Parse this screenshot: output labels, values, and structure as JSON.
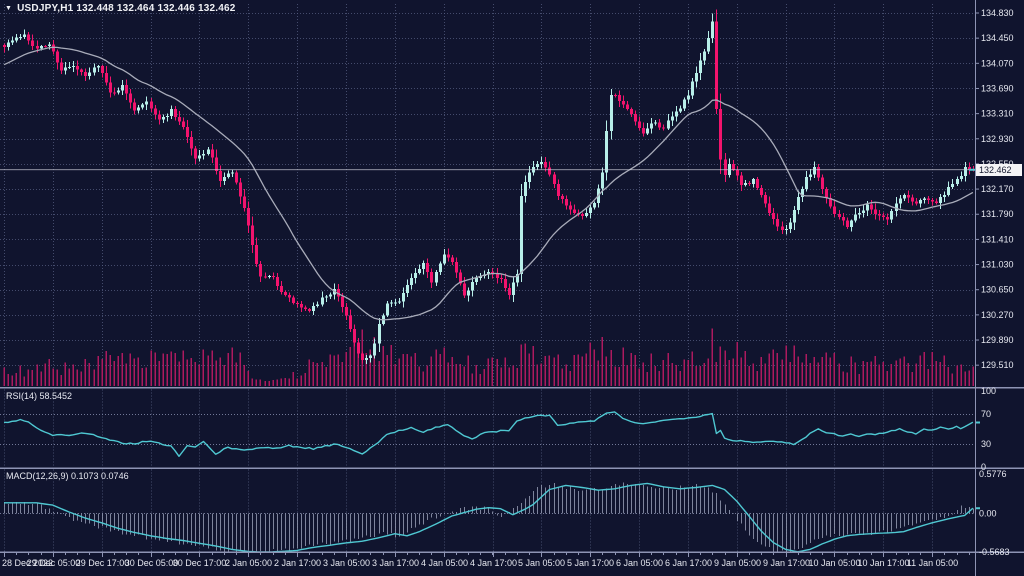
{
  "header": {
    "title_text": "USDJPY,H1 132.448 132.464 132.446 132.462",
    "dropdown_icon": "▼"
  },
  "panels": {
    "rsi_label": "RSI(14) 58.5452",
    "macd_label": "MACD(12,26,9) 0.1073 0.0746"
  },
  "price_axis": {
    "ticks": [
      "134.830",
      "134.450",
      "134.070",
      "133.690",
      "133.310",
      "132.930",
      "132.550",
      "132.170",
      "131.790",
      "131.410",
      "131.030",
      "130.650",
      "130.270",
      "129.890",
      "129.510"
    ],
    "current_label": "132.462"
  },
  "time_axis": {
    "labels": [
      "28 Dec 2022",
      "29 Dec 05:00",
      "29 Dec 17:00",
      "30 Dec 05:00",
      "30 Dec 17:00",
      "2 Jan 05:00",
      "2 Jan 17:00",
      "3 Jan 05:00",
      "3 Jan 17:00",
      "4 Jan 05:00",
      "4 Jan 17:00",
      "5 Jan 05:00",
      "5 Jan 17:00",
      "6 Jan 05:00",
      "6 Jan 17:00",
      "9 Jan 05:00",
      "9 Jan 17:00",
      "10 Jan 05:00",
      "10 Jan 17:00",
      "11 Jan 05:00"
    ]
  },
  "colors": {
    "background": "#10142e",
    "bull": "#b8efe9",
    "bear": "#f2146d",
    "volume": "#ad1a5f",
    "ma_line": "#a9acba",
    "indicator_line": "#4fc8d2",
    "histogram": "#9aa0b8",
    "grid": "#565d82",
    "level_line": "#7d84a4",
    "separator": "#8e94b4",
    "axis_text": "#e6e8f0",
    "price_line": "#cfd2dd",
    "price_box_bg": "#f4f4f6",
    "price_box_text": "#14182e"
  },
  "chart_data": {
    "type": "candlestick",
    "symbol": "USDJPY",
    "timeframe": "H1",
    "ohlc_quote": {
      "open": 132.448,
      "high": 132.464,
      "low": 132.446,
      "close": 132.462
    },
    "bars_total": 239,
    "visible_price_range": [
      129.45,
      134.92
    ],
    "current_price": 132.462,
    "close_path": [
      [
        0,
        134.35
      ],
      [
        3,
        134.44
      ],
      [
        5,
        134.52
      ],
      [
        8,
        134.28
      ],
      [
        11,
        134.36
      ],
      [
        14,
        133.98
      ],
      [
        17,
        134.02
      ],
      [
        20,
        133.86
      ],
      [
        23,
        134.06
      ],
      [
        26,
        133.62
      ],
      [
        29,
        133.72
      ],
      [
        32,
        133.38
      ],
      [
        35,
        133.52
      ],
      [
        38,
        133.2
      ],
      [
        41,
        133.36
      ],
      [
        44,
        133.12
      ],
      [
        47,
        132.62
      ],
      [
        50,
        132.78
      ],
      [
        53,
        132.3
      ],
      [
        56,
        132.42
      ],
      [
        59,
        131.88
      ],
      [
        61,
        131.3
      ],
      [
        63,
        130.82
      ],
      [
        66,
        130.82
      ],
      [
        69,
        130.55
      ],
      [
        72,
        130.42
      ],
      [
        75,
        130.3
      ],
      [
        78,
        130.52
      ],
      [
        81,
        130.64
      ],
      [
        84,
        130.28
      ],
      [
        86,
        129.85
      ],
      [
        88,
        129.58
      ],
      [
        90,
        129.62
      ],
      [
        92,
        130.1
      ],
      [
        94,
        130.42
      ],
      [
        97,
        130.5
      ],
      [
        100,
        130.82
      ],
      [
        103,
        131.02
      ],
      [
        105,
        130.78
      ],
      [
        108,
        131.22
      ],
      [
        110,
        131.05
      ],
      [
        113,
        130.58
      ],
      [
        116,
        130.85
      ],
      [
        119,
        130.95
      ],
      [
        122,
        130.78
      ],
      [
        124,
        130.6
      ],
      [
        126,
        130.92
      ],
      [
        127,
        132.1
      ],
      [
        129,
        132.42
      ],
      [
        132,
        132.58
      ],
      [
        134,
        132.38
      ],
      [
        136,
        132.05
      ],
      [
        139,
        131.85
      ],
      [
        142,
        131.78
      ],
      [
        145,
        131.95
      ],
      [
        147,
        132.45
      ],
      [
        149,
        133.62
      ],
      [
        151,
        133.5
      ],
      [
        154,
        133.28
      ],
      [
        157,
        132.98
      ],
      [
        159,
        133.18
      ],
      [
        162,
        133.1
      ],
      [
        165,
        133.32
      ],
      [
        168,
        133.6
      ],
      [
        170,
        133.92
      ],
      [
        172,
        134.25
      ],
      [
        174,
        134.7
      ],
      [
        175,
        133.35
      ],
      [
        176,
        132.62
      ],
      [
        177,
        132.38
      ],
      [
        178,
        132.58
      ],
      [
        181,
        132.22
      ],
      [
        184,
        132.3
      ],
      [
        187,
        131.95
      ],
      [
        189,
        131.72
      ],
      [
        191,
        131.52
      ],
      [
        193,
        131.68
      ],
      [
        195,
        132.05
      ],
      [
        197,
        132.35
      ],
      [
        199,
        132.5
      ],
      [
        202,
        132.05
      ],
      [
        204,
        131.82
      ],
      [
        207,
        131.62
      ],
      [
        209,
        131.78
      ],
      [
        212,
        131.92
      ],
      [
        214,
        131.82
      ],
      [
        217,
        131.72
      ],
      [
        219,
        131.95
      ],
      [
        221,
        132.08
      ],
      [
        224,
        131.95
      ],
      [
        226,
        132.05
      ],
      [
        229,
        131.96
      ],
      [
        231,
        132.1
      ],
      [
        234,
        132.3
      ],
      [
        236,
        132.48
      ],
      [
        238,
        132.462
      ]
    ],
    "volume_path": [
      [
        0,
        0.35
      ],
      [
        6,
        0.3
      ],
      [
        12,
        0.45
      ],
      [
        18,
        0.35
      ],
      [
        24,
        0.55
      ],
      [
        30,
        0.5
      ],
      [
        34,
        0.7
      ],
      [
        40,
        0.55
      ],
      [
        46,
        0.6
      ],
      [
        52,
        0.55
      ],
      [
        57,
        0.65
      ],
      [
        61,
        0.3
      ],
      [
        64,
        0.12
      ],
      [
        70,
        0.15
      ],
      [
        74,
        0.4
      ],
      [
        80,
        0.55
      ],
      [
        84,
        0.65
      ],
      [
        88,
        0.9
      ],
      [
        92,
        0.8
      ],
      [
        96,
        0.6
      ],
      [
        102,
        0.55
      ],
      [
        108,
        0.6
      ],
      [
        114,
        0.5
      ],
      [
        120,
        0.45
      ],
      [
        125,
        0.55
      ],
      [
        127,
        0.8
      ],
      [
        131,
        0.6
      ],
      [
        136,
        0.5
      ],
      [
        141,
        0.55
      ],
      [
        146,
        0.8
      ],
      [
        150,
        0.7
      ],
      [
        155,
        0.55
      ],
      [
        160,
        0.5
      ],
      [
        165,
        0.55
      ],
      [
        170,
        0.75
      ],
      [
        174,
        0.95
      ],
      [
        178,
        0.85
      ],
      [
        182,
        0.6
      ],
      [
        187,
        0.55
      ],
      [
        192,
        0.7
      ],
      [
        196,
        0.6
      ],
      [
        200,
        0.55
      ],
      [
        205,
        0.5
      ],
      [
        210,
        0.45
      ],
      [
        215,
        0.5
      ],
      [
        220,
        0.45
      ],
      [
        225,
        0.65
      ],
      [
        230,
        0.5
      ],
      [
        234,
        0.45
      ],
      [
        238,
        0.4
      ]
    ],
    "moving_average": {
      "style": "smoothed price average (gray)",
      "window": 21
    },
    "rsi": {
      "period": 14,
      "current": 58.5452,
      "range": [
        0,
        100
      ],
      "levels": [
        70,
        30
      ],
      "path": [
        [
          0,
          58
        ],
        [
          4,
          62
        ],
        [
          6,
          60
        ],
        [
          9,
          48
        ],
        [
          12,
          42
        ],
        [
          16,
          42
        ],
        [
          20,
          45
        ],
        [
          23,
          40
        ],
        [
          26,
          35
        ],
        [
          29,
          32
        ],
        [
          32,
          30
        ],
        [
          35,
          34
        ],
        [
          38,
          31
        ],
        [
          41,
          28
        ],
        [
          43,
          14
        ],
        [
          45,
          28
        ],
        [
          47,
          26
        ],
        [
          49,
          33
        ],
        [
          52,
          17
        ],
        [
          55,
          26
        ],
        [
          58,
          22
        ],
        [
          61,
          24
        ],
        [
          64,
          26
        ],
        [
          67,
          24
        ],
        [
          70,
          28
        ],
        [
          73,
          26
        ],
        [
          76,
          24
        ],
        [
          79,
          28
        ],
        [
          82,
          30
        ],
        [
          85,
          24
        ],
        [
          88,
          18
        ],
        [
          91,
          28
        ],
        [
          94,
          42
        ],
        [
          97,
          48
        ],
        [
          100,
          52
        ],
        [
          103,
          46
        ],
        [
          106,
          52
        ],
        [
          109,
          56
        ],
        [
          112,
          44
        ],
        [
          115,
          37
        ],
        [
          118,
          45
        ],
        [
          121,
          47
        ],
        [
          124,
          48
        ],
        [
          126,
          60
        ],
        [
          128,
          65
        ],
        [
          131,
          67
        ],
        [
          134,
          68
        ],
        [
          136,
          55
        ],
        [
          139,
          57
        ],
        [
          142,
          59
        ],
        [
          145,
          61
        ],
        [
          148,
          70
        ],
        [
          150,
          72
        ],
        [
          153,
          61
        ],
        [
          156,
          57
        ],
        [
          159,
          59
        ],
        [
          162,
          61
        ],
        [
          165,
          63
        ],
        [
          168,
          65
        ],
        [
          171,
          67
        ],
        [
          174,
          71
        ],
        [
          175,
          44
        ],
        [
          176,
          48
        ],
        [
          177,
          38
        ],
        [
          179,
          35
        ],
        [
          182,
          34
        ],
        [
          185,
          33
        ],
        [
          188,
          33
        ],
        [
          191,
          33
        ],
        [
          194,
          30
        ],
        [
          196,
          36
        ],
        [
          198,
          44
        ],
        [
          200,
          50
        ],
        [
          202,
          46
        ],
        [
          204,
          44
        ],
        [
          206,
          40
        ],
        [
          208,
          44
        ],
        [
          210,
          41
        ],
        [
          212,
          44
        ],
        [
          214,
          42
        ],
        [
          216,
          45
        ],
        [
          218,
          48
        ],
        [
          220,
          50
        ],
        [
          222,
          46
        ],
        [
          224,
          44
        ],
        [
          226,
          50
        ],
        [
          228,
          48
        ],
        [
          230,
          52
        ],
        [
          232,
          50
        ],
        [
          234,
          54
        ],
        [
          235,
          50
        ],
        [
          237,
          56
        ],
        [
          238,
          58.5
        ]
      ]
    },
    "macd": {
      "fast": 12,
      "slow": 26,
      "signal": 9,
      "current_macd": 0.1073,
      "current_signal": 0.0746,
      "scale_max": 0.5776,
      "scale_min": -0.5683,
      "signal_path": [
        [
          0,
          0.155
        ],
        [
          8,
          0.155
        ],
        [
          12,
          0.12
        ],
        [
          16,
          0.02
        ],
        [
          20,
          -0.07
        ],
        [
          24,
          -0.14
        ],
        [
          28,
          -0.22
        ],
        [
          32,
          -0.28
        ],
        [
          36,
          -0.33
        ],
        [
          40,
          -0.37
        ],
        [
          44,
          -0.4
        ],
        [
          48,
          -0.44
        ],
        [
          52,
          -0.48
        ],
        [
          56,
          -0.53
        ],
        [
          60,
          -0.56
        ],
        [
          64,
          -0.57
        ],
        [
          68,
          -0.56
        ],
        [
          72,
          -0.545
        ],
        [
          76,
          -0.5
        ],
        [
          80,
          -0.47
        ],
        [
          84,
          -0.435
        ],
        [
          88,
          -0.41
        ],
        [
          92,
          -0.36
        ],
        [
          96,
          -0.3
        ],
        [
          99,
          -0.33
        ],
        [
          102,
          -0.27
        ],
        [
          106,
          -0.16
        ],
        [
          110,
          -0.04
        ],
        [
          113,
          0.01
        ],
        [
          116,
          0.06
        ],
        [
          119,
          0.083
        ],
        [
          122,
          0.068
        ],
        [
          125,
          -0.02
        ],
        [
          128,
          0.06
        ],
        [
          130,
          0.13
        ],
        [
          134,
          0.35
        ],
        [
          138,
          0.41
        ],
        [
          142,
          0.38
        ],
        [
          146,
          0.34
        ],
        [
          150,
          0.36
        ],
        [
          154,
          0.41
        ],
        [
          158,
          0.44
        ],
        [
          162,
          0.39
        ],
        [
          166,
          0.36
        ],
        [
          170,
          0.38
        ],
        [
          174,
          0.41
        ],
        [
          177,
          0.35
        ],
        [
          180,
          0.18
        ],
        [
          183,
          -0.04
        ],
        [
          186,
          -0.26
        ],
        [
          189,
          -0.43
        ],
        [
          192,
          -0.53
        ],
        [
          195,
          -0.565
        ],
        [
          198,
          -0.53
        ],
        [
          201,
          -0.45
        ],
        [
          204,
          -0.38
        ],
        [
          207,
          -0.33
        ],
        [
          210,
          -0.31
        ],
        [
          214,
          -0.295
        ],
        [
          218,
          -0.285
        ],
        [
          221,
          -0.27
        ],
        [
          224,
          -0.21
        ],
        [
          228,
          -0.14
        ],
        [
          232,
          -0.08
        ],
        [
          236,
          -0.03
        ],
        [
          238,
          0.0746
        ]
      ]
    }
  }
}
